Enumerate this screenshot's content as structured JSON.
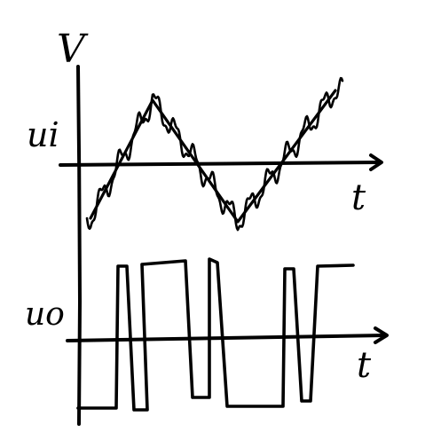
{
  "labels": {
    "v_axis": "V",
    "ui_label": "ui",
    "uo_label": "uo",
    "t_upper": "t",
    "t_lower": "t"
  },
  "colors": {
    "ink": "#000000",
    "background": "#ffffff"
  }
}
